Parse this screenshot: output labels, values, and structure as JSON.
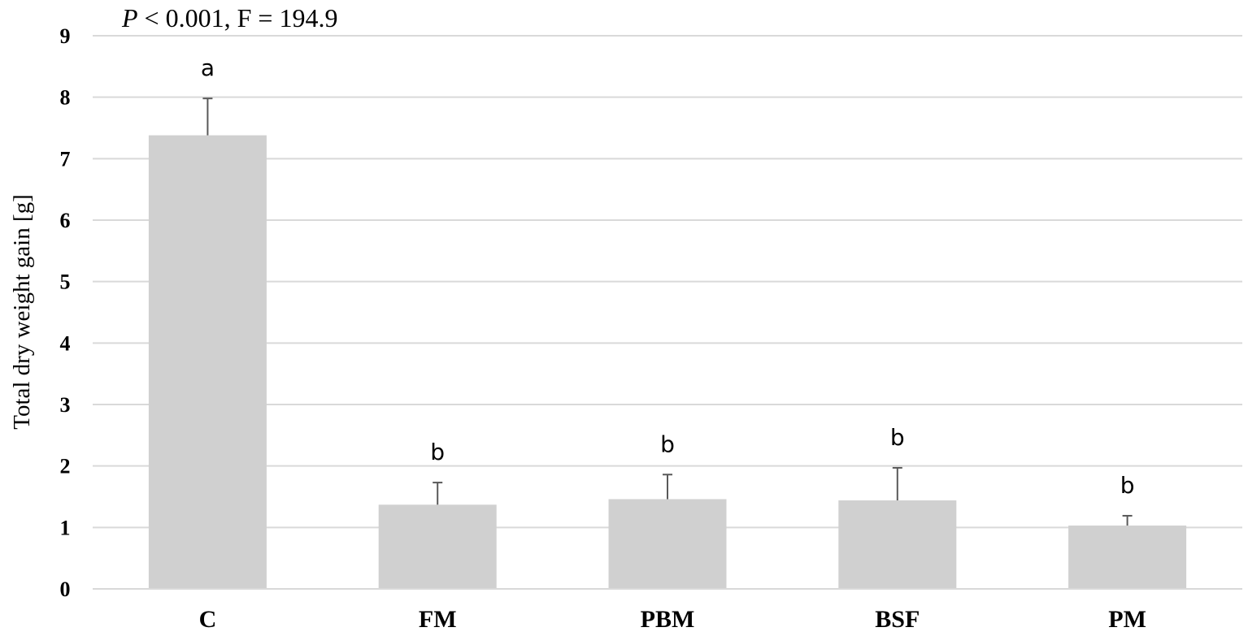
{
  "chart_data": {
    "type": "bar",
    "annotation": {
      "p_symbol": "P",
      "p_rest": " < 0.001, F = 194.9"
    },
    "categories": [
      "C",
      "FM",
      "PBM",
      "BSF",
      "PM"
    ],
    "values": [
      7.38,
      1.37,
      1.46,
      1.44,
      1.03
    ],
    "errors": [
      0.6,
      0.36,
      0.4,
      0.53,
      0.16
    ],
    "significance_letters": [
      "a",
      "b",
      "b",
      "b",
      "b"
    ],
    "ylabel": "Total dry weight gain [g]",
    "xlabel": "",
    "ylim": [
      0,
      9
    ],
    "yticks": [
      0,
      1,
      2,
      3,
      4,
      5,
      6,
      7,
      8,
      9
    ],
    "grid": true,
    "bar_color": "#d0d0d0",
    "error_bar_color": "#595959",
    "grid_color": "#d9d9d9"
  }
}
